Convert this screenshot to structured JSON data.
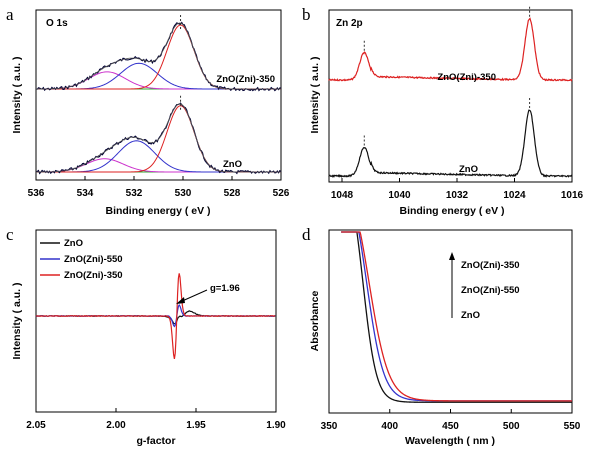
{
  "panels": {
    "a": {
      "letter": "a",
      "chart_data": {
        "type": "line",
        "title": "O 1s",
        "xlabel": "Binding energy ( eV )",
        "ylabel": "Intensity ( a.u. )",
        "xlim": [
          536,
          526
        ],
        "xticks": [
          "536",
          "534",
          "532",
          "530",
          "528",
          "526"
        ],
        "x_reversed": true,
        "grid": false,
        "curve_labels": [
          "ZnO(Zni)-350",
          "ZnO"
        ],
        "spectra": [
          {
            "name": "ZnO(Zni)-350",
            "peaks": [
              {
                "center": 533.1,
                "height": 0.22,
                "color": "#cc33cc"
              },
              {
                "center": 531.8,
                "height": 0.33,
                "color": "#3333cc"
              },
              {
                "center": 530.1,
                "height": 0.82,
                "color": "#dd2222"
              }
            ],
            "baseline_color": "#33aa33",
            "raw_color": "#000033",
            "envelope_color": "#555555"
          },
          {
            "name": "ZnO",
            "peaks": [
              {
                "center": 533.2,
                "height": 0.17,
                "color": "#cc33cc"
              },
              {
                "center": 531.9,
                "height": 0.4,
                "color": "#3333cc"
              },
              {
                "center": 530.1,
                "height": 0.85,
                "color": "#dd2222"
              }
            ],
            "baseline_color": "#33aa33",
            "raw_color": "#000033",
            "envelope_color": "#555555"
          }
        ]
      }
    },
    "b": {
      "letter": "b",
      "chart_data": {
        "type": "line",
        "title": "Zn 2p",
        "xlabel": "Binding energy ( eV )",
        "ylabel": "Intensity ( a.u. )",
        "xlim": [
          1048,
          1016
        ],
        "xticks": [
          "1048",
          "1040",
          "1032",
          "1024",
          "1016"
        ],
        "x_reversed": true,
        "grid": false,
        "curve_labels": [
          "ZnO(Zni)-350",
          "ZnO"
        ],
        "peak_centers": [
          1044.9,
          1021.9
        ],
        "series": [
          {
            "name": "ZnO(Zni)-350",
            "color": "#dd2222",
            "peak_heights": [
              0.4,
              0.9
            ],
            "offset": 1
          },
          {
            "name": "ZnO",
            "color": "#111111",
            "peak_heights": [
              0.42,
              0.97
            ],
            "offset": 0
          }
        ]
      }
    },
    "c": {
      "letter": "c",
      "chart_data": {
        "type": "line",
        "title": "",
        "xlabel": "g-factor",
        "ylabel": "Intensity ( a.u. )",
        "xlim": [
          2.05,
          1.9
        ],
        "xticks": [
          "2.05",
          "2.00",
          "1.95",
          "1.90"
        ],
        "x_reversed": true,
        "grid": false,
        "legend_position": "top-left",
        "annotation": "g=1.96",
        "g_center": 1.962,
        "series": [
          {
            "name": "ZnO",
            "color": "#111111",
            "amplitude": 0.18
          },
          {
            "name": "ZnO(Zni)-550",
            "color": "#3333cc",
            "amplitude": 0.55
          },
          {
            "name": "ZnO(Zni)-350",
            "color": "#dd2222",
            "amplitude": 2.2
          }
        ]
      }
    },
    "d": {
      "letter": "d",
      "chart_data": {
        "type": "line",
        "title": "",
        "xlabel": "Wavelength ( nm )",
        "ylabel": "Absorbance",
        "xlim": [
          350,
          550
        ],
        "xticks": [
          "350",
          "400",
          "450",
          "500",
          "550"
        ],
        "grid": false,
        "legend_order_arrow": true,
        "series_labels": [
          "ZnO(Zni)-350",
          "ZnO(Zni)-550",
          "ZnO"
        ],
        "series": [
          {
            "name": "ZnO",
            "color": "#111111",
            "edge_nm": 378,
            "width": 5.5,
            "tail": 0.01
          },
          {
            "name": "ZnO(Zni)-550",
            "color": "#3333cc",
            "edge_nm": 381,
            "width": 7,
            "tail": 0.018
          },
          {
            "name": "ZnO(Zni)-350",
            "color": "#dd2222",
            "edge_nm": 383,
            "width": 8,
            "tail": 0.018
          }
        ]
      }
    }
  }
}
